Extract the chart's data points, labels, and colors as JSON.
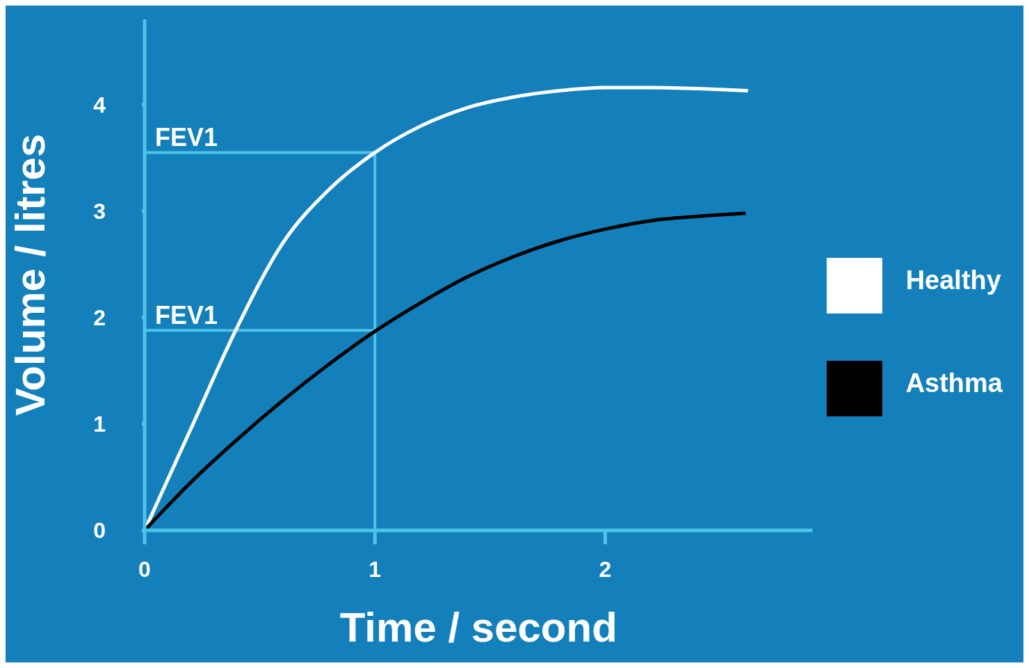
{
  "chart_data": {
    "type": "line",
    "xlabel": "Time / second",
    "ylabel": "Volume / litres",
    "xlim": [
      0,
      2.9
    ],
    "xticks": [
      0,
      1,
      2
    ],
    "ylim": [
      0,
      4.8
    ],
    "yticks": [
      0,
      1,
      2,
      3,
      4
    ],
    "grid": false,
    "legend": "right",
    "marker": "none",
    "line_style": "solid",
    "series": [
      {
        "name": "Healthy",
        "color": "#ffffff",
        "x": [
          0,
          0.2,
          0.4,
          0.6,
          0.8,
          1.0,
          1.2,
          1.4,
          1.6,
          1.8,
          2.0,
          2.2,
          2.4,
          2.62
        ],
        "values": [
          0,
          0.95,
          1.9,
          2.7,
          3.2,
          3.55,
          3.8,
          3.97,
          4.07,
          4.13,
          4.16,
          4.16,
          4.15,
          4.13
        ]
      },
      {
        "name": "Asthma",
        "color": "#000000",
        "x": [
          0,
          0.2,
          0.4,
          0.6,
          0.8,
          1.0,
          1.2,
          1.4,
          1.6,
          1.8,
          2.0,
          2.2,
          2.4,
          2.61
        ],
        "values": [
          0,
          0.45,
          0.85,
          1.22,
          1.56,
          1.87,
          2.14,
          2.38,
          2.57,
          2.72,
          2.83,
          2.91,
          2.95,
          2.98
        ]
      }
    ],
    "ref_lines": [
      {
        "axis": "y",
        "value": 3.55,
        "label": "FEV1",
        "color": "#4fc3e8"
      },
      {
        "axis": "y",
        "value": 1.88,
        "label": "FEV1",
        "color": "#4fc3e8"
      },
      {
        "axis": "x",
        "value": 1,
        "color": "#4fc3e8"
      }
    ]
  }
}
